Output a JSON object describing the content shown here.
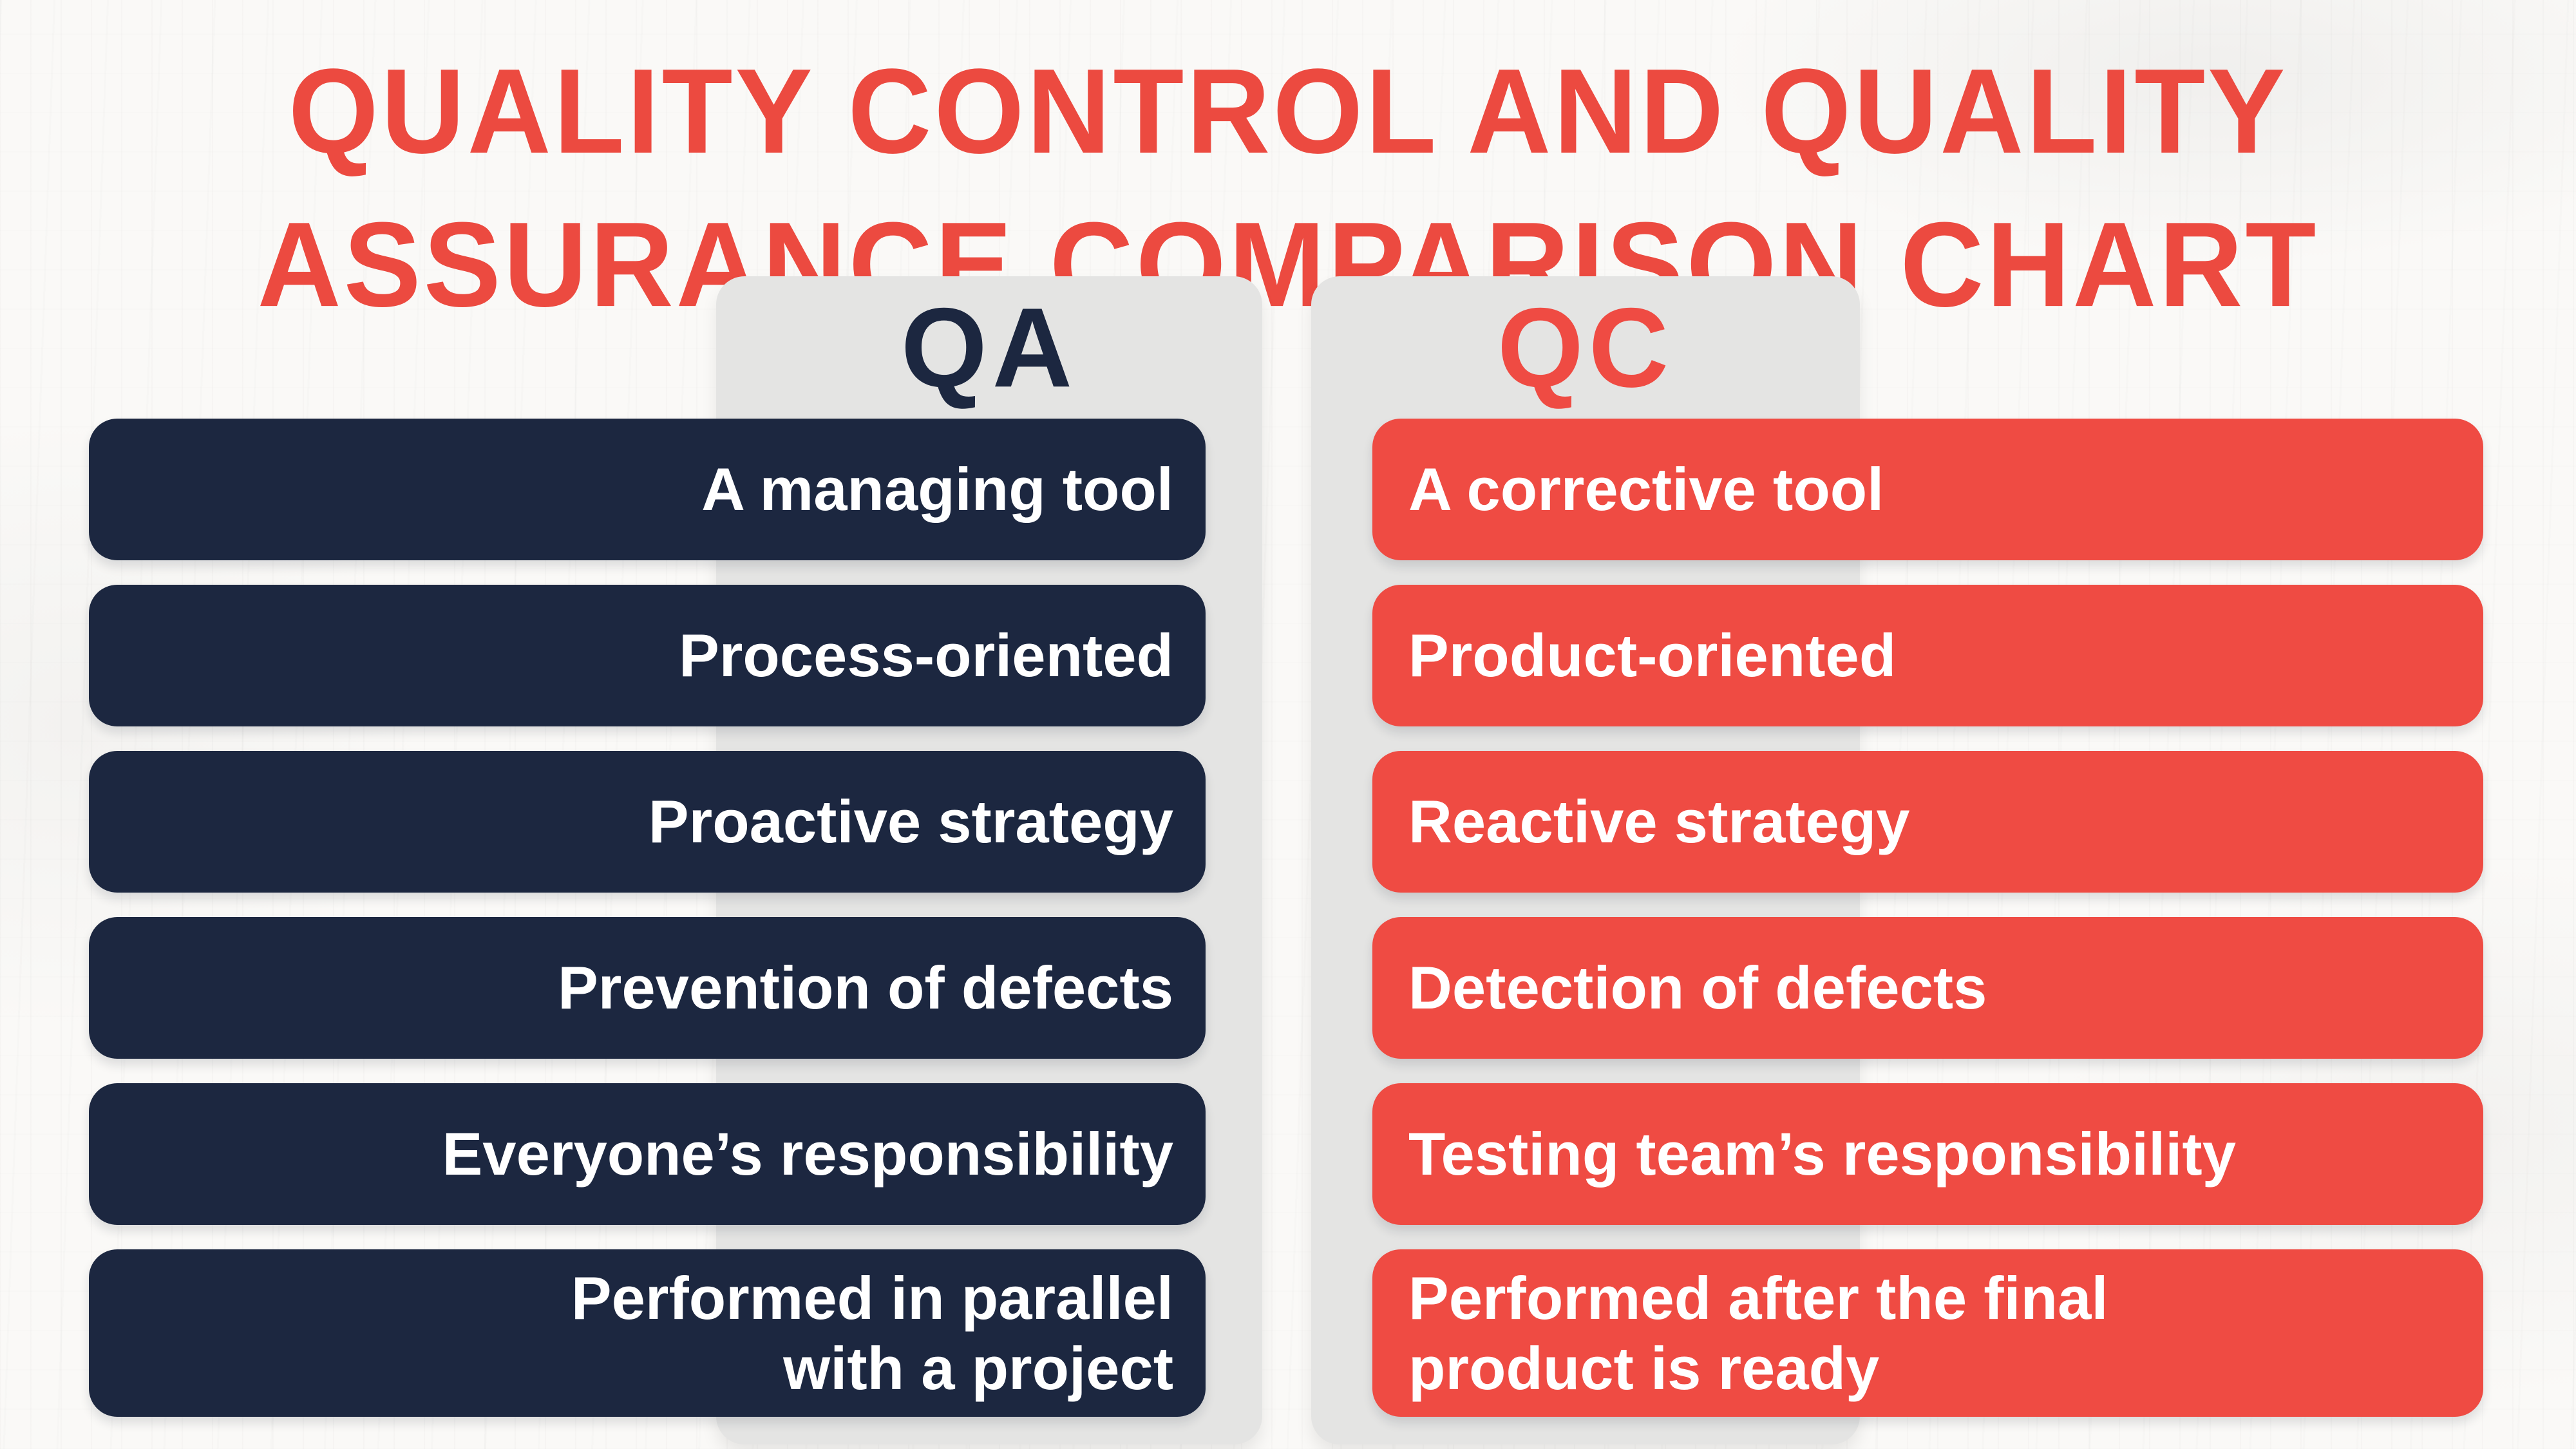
{
  "title": {
    "line1": "QUALITY CONTROL AND QUALITY",
    "line2": "ASSURANCE COMPARISON CHART"
  },
  "columns": [
    {
      "id": "qa",
      "header": "QA",
      "rows": [
        "A managing tool",
        "Process-oriented",
        "Proactive strategy",
        "Prevention of defects",
        "Everyone’s responsibility",
        "Performed in parallel\nwith a project"
      ]
    },
    {
      "id": "qc",
      "header": "QC",
      "rows": [
        "A corrective tool",
        "Product-oriented",
        "Reactive strategy",
        "Detection of defects",
        "Testing team’s responsibility",
        "Performed after the final\nproduct is ready"
      ]
    }
  ],
  "colors": {
    "accent_red": "#EF4B43",
    "accent_navy": "#1C2740",
    "panel_gray": "#E4E4E3",
    "background": "#FAF9F7",
    "pill_text": "#FFFFFF"
  }
}
